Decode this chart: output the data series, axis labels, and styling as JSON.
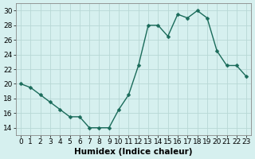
{
  "x": [
    0,
    1,
    2,
    3,
    4,
    5,
    6,
    7,
    8,
    9,
    10,
    11,
    12,
    13,
    14,
    15,
    16,
    17,
    18,
    19,
    20,
    21,
    22,
    23
  ],
  "y": [
    20,
    19.5,
    18.5,
    17.5,
    16.5,
    15.5,
    15.5,
    14,
    14,
    14,
    16.5,
    18.5,
    22.5,
    28,
    28,
    26.5,
    29.5,
    29,
    30,
    29,
    24.5,
    22.5,
    22.5,
    21
  ],
  "line_color": "#1a6b5a",
  "bg_color": "#d6f0ef",
  "grid_color": "#b8d8d5",
  "xlabel": "Humidex (Indice chaleur)",
  "xlim": [
    -0.5,
    23.5
  ],
  "ylim": [
    13,
    31
  ],
  "yticks": [
    14,
    16,
    18,
    20,
    22,
    24,
    26,
    28,
    30
  ],
  "xticks": [
    0,
    1,
    2,
    3,
    4,
    5,
    6,
    7,
    8,
    9,
    10,
    11,
    12,
    13,
    14,
    15,
    16,
    17,
    18,
    19,
    20,
    21,
    22,
    23
  ],
  "xtick_labels": [
    "0",
    "1",
    "2",
    "3",
    "4",
    "5",
    "6",
    "7",
    "8",
    "9",
    "10",
    "11",
    "12",
    "13",
    "14",
    "15",
    "16",
    "17",
    "18",
    "19",
    "20",
    "21",
    "22",
    "23"
  ],
  "marker_size": 2.5,
  "line_width": 1.0,
  "tick_fontsize": 6.5,
  "label_fontsize": 7.5
}
